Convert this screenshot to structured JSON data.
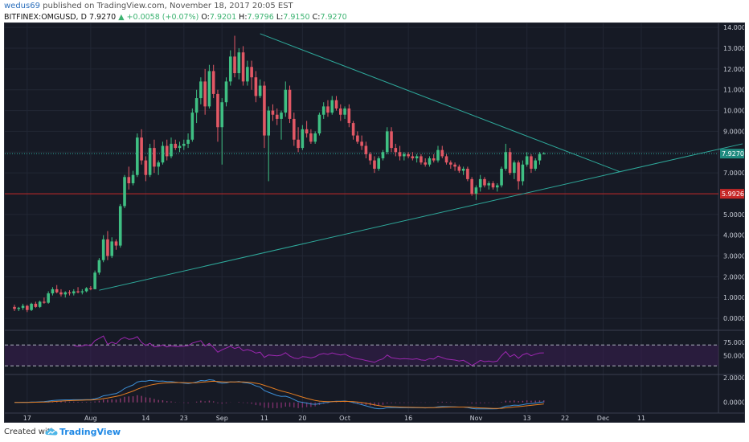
{
  "header": {
    "username": "wedus69",
    "published_text": "published on TradingView.com, November 18, 2017 20:05 EST",
    "symbol": "BITFINEX:OMGUSD, D",
    "last": "7.9270",
    "change": "+0.0058 (+0.07%)",
    "o_label": "O:",
    "o_value": "7.9201",
    "h_label": "H:",
    "h_value": "7.9796",
    "l_label": "L:",
    "l_value": "7.9150",
    "c_label": "C:",
    "c_value": "7.9270"
  },
  "footer": {
    "created_with": "Created with",
    "brand": "TradingView",
    "logo_icon": "tradingview-cloud-icon"
  },
  "colors": {
    "bg": "#161a25",
    "up": "#3fbf83",
    "down": "#e25865",
    "trend": "#2ea89a",
    "support": "#c62828",
    "rsi": "#9c27b0",
    "grid": "#222735"
  },
  "chart_data": {
    "type": "candlestick",
    "price_axis": {
      "ticks": [
        "14.0000",
        "13.0000",
        "12.0000",
        "11.0000",
        "10.0000",
        "9.0000",
        "8.0000",
        "7.0000",
        "6.0000",
        "5.0000",
        "4.0000",
        "3.0000",
        "2.0000",
        "1.0000",
        "0.0000"
      ],
      "ylim": [
        -0.5,
        14.2
      ],
      "last_price_label": "7.9270",
      "support_label": "5.9926",
      "support_level": 5.9926
    },
    "rsi_axis": {
      "ticks": [
        "75.0000",
        "50.0000"
      ],
      "ylim": [
        15,
        95
      ],
      "bands": [
        70,
        30
      ]
    },
    "macd_axis": {
      "ticks": [
        "2.0000",
        "0.0000"
      ],
      "ylim": [
        -0.8,
        2.2
      ]
    },
    "x_ticks": [
      {
        "label": "17",
        "i": 3
      },
      {
        "label": "Aug",
        "i": 18
      },
      {
        "label": "14",
        "i": 31
      },
      {
        "label": "23",
        "i": 40
      },
      {
        "label": "Sep",
        "i": 49
      },
      {
        "label": "11",
        "i": 59
      },
      {
        "label": "20",
        "i": 68
      },
      {
        "label": "Oct",
        "i": 78
      },
      {
        "label": "16",
        "i": 93
      },
      {
        "label": "Nov",
        "i": 109
      },
      {
        "label": "13",
        "i": 121
      },
      {
        "label": "22",
        "i": 130
      },
      {
        "label": "Dec",
        "i": 139
      },
      {
        "label": "11",
        "i": 148
      }
    ],
    "candles": [
      [
        0.55,
        0.65,
        0.35,
        0.45
      ],
      [
        0.45,
        0.55,
        0.35,
        0.5
      ],
      [
        0.5,
        0.7,
        0.4,
        0.6
      ],
      [
        0.6,
        0.65,
        0.3,
        0.4
      ],
      [
        0.4,
        0.75,
        0.35,
        0.7
      ],
      [
        0.7,
        0.8,
        0.5,
        0.55
      ],
      [
        0.55,
        0.85,
        0.5,
        0.8
      ],
      [
        0.8,
        1.0,
        0.7,
        0.75
      ],
      [
        0.75,
        1.3,
        0.7,
        1.2
      ],
      [
        1.2,
        1.5,
        1.1,
        1.4
      ],
      [
        1.4,
        1.6,
        1.2,
        1.25
      ],
      [
        1.25,
        1.4,
        1.05,
        1.15
      ],
      [
        1.15,
        1.3,
        1.0,
        1.25
      ],
      [
        1.25,
        1.35,
        1.1,
        1.2
      ],
      [
        1.2,
        1.4,
        1.1,
        1.3
      ],
      [
        1.3,
        1.5,
        1.2,
        1.25
      ],
      [
        1.25,
        1.4,
        1.15,
        1.3
      ],
      [
        1.3,
        1.5,
        1.25,
        1.45
      ],
      [
        1.45,
        1.55,
        1.35,
        1.4
      ],
      [
        1.4,
        2.3,
        1.4,
        2.2
      ],
      [
        2.2,
        2.9,
        2.1,
        2.8
      ],
      [
        2.8,
        4.0,
        2.7,
        3.8
      ],
      [
        3.8,
        4.2,
        2.8,
        3.0
      ],
      [
        3.0,
        3.9,
        2.9,
        3.7
      ],
      [
        3.7,
        3.8,
        3.3,
        3.5
      ],
      [
        3.5,
        5.5,
        3.4,
        5.4
      ],
      [
        5.4,
        6.9,
        5.3,
        6.8
      ],
      [
        6.8,
        7.3,
        6.2,
        6.5
      ],
      [
        6.5,
        7.1,
        6.4,
        6.9
      ],
      [
        6.9,
        8.9,
        6.8,
        8.7
      ],
      [
        8.7,
        9.1,
        7.4,
        7.6
      ],
      [
        7.6,
        7.8,
        6.6,
        6.9
      ],
      [
        6.9,
        8.4,
        6.8,
        8.2
      ],
      [
        8.2,
        8.6,
        7.0,
        7.3
      ],
      [
        7.3,
        7.6,
        6.9,
        7.5
      ],
      [
        7.5,
        8.5,
        7.4,
        8.3
      ],
      [
        8.3,
        8.6,
        7.6,
        7.8
      ],
      [
        7.8,
        8.7,
        7.7,
        8.4
      ],
      [
        8.4,
        8.6,
        8.1,
        8.2
      ],
      [
        8.2,
        8.5,
        8.0,
        8.3
      ],
      [
        8.3,
        8.6,
        8.1,
        8.4
      ],
      [
        8.4,
        8.9,
        8.2,
        8.6
      ],
      [
        8.6,
        10.1,
        8.5,
        9.9
      ],
      [
        9.9,
        11.0,
        9.4,
        10.6
      ],
      [
        10.6,
        11.6,
        10.3,
        11.4
      ],
      [
        11.4,
        12.0,
        9.8,
        10.2
      ],
      [
        10.2,
        12.2,
        10.1,
        11.9
      ],
      [
        11.9,
        12.2,
        10.6,
        10.8
      ],
      [
        10.8,
        11.0,
        8.5,
        9.2
      ],
      [
        9.2,
        10.6,
        7.4,
        10.4
      ],
      [
        10.4,
        11.6,
        10.2,
        11.4
      ],
      [
        11.4,
        12.9,
        11.2,
        12.6
      ],
      [
        12.6,
        13.6,
        11.6,
        11.8
      ],
      [
        11.8,
        13.0,
        11.5,
        12.8
      ],
      [
        12.8,
        13.1,
        11.2,
        11.4
      ],
      [
        11.4,
        12.4,
        11.2,
        12.1
      ],
      [
        12.1,
        12.4,
        11.0,
        11.6
      ],
      [
        11.6,
        11.9,
        10.4,
        10.7
      ],
      [
        10.7,
        11.5,
        10.6,
        11.2
      ],
      [
        11.2,
        11.4,
        8.2,
        8.8
      ],
      [
        8.8,
        10.2,
        6.6,
        10.0
      ],
      [
        10.0,
        10.3,
        9.5,
        9.8
      ],
      [
        9.8,
        10.1,
        9.3,
        9.6
      ],
      [
        9.6,
        10.0,
        8.6,
        9.9
      ],
      [
        9.9,
        11.4,
        9.7,
        11.0
      ],
      [
        11.0,
        11.2,
        9.4,
        9.6
      ],
      [
        9.6,
        9.9,
        8.3,
        8.6
      ],
      [
        8.6,
        9.2,
        8.0,
        8.2
      ],
      [
        8.2,
        9.3,
        8.1,
        9.1
      ],
      [
        9.1,
        9.5,
        8.7,
        8.9
      ],
      [
        8.9,
        9.1,
        8.4,
        8.5
      ],
      [
        8.5,
        9.0,
        8.4,
        8.9
      ],
      [
        8.9,
        9.9,
        8.8,
        9.8
      ],
      [
        9.8,
        10.4,
        9.6,
        10.2
      ],
      [
        10.2,
        10.5,
        9.7,
        9.9
      ],
      [
        9.9,
        10.7,
        9.8,
        10.5
      ],
      [
        10.5,
        10.7,
        10.0,
        10.1
      ],
      [
        10.1,
        10.3,
        9.5,
        9.8
      ],
      [
        9.8,
        10.2,
        9.6,
        10.1
      ],
      [
        10.1,
        10.3,
        9.2,
        9.4
      ],
      [
        9.4,
        9.5,
        8.6,
        8.8
      ],
      [
        8.8,
        9.0,
        8.4,
        8.5
      ],
      [
        8.5,
        8.8,
        8.1,
        8.3
      ],
      [
        8.3,
        8.5,
        7.7,
        7.9
      ],
      [
        7.9,
        8.0,
        7.4,
        7.6
      ],
      [
        7.6,
        7.8,
        7.0,
        7.2
      ],
      [
        7.2,
        7.8,
        7.1,
        7.7
      ],
      [
        7.7,
        8.1,
        7.6,
        8.0
      ],
      [
        8.0,
        9.2,
        7.9,
        9.0
      ],
      [
        9.0,
        9.2,
        8.0,
        8.2
      ],
      [
        8.2,
        8.4,
        7.8,
        8.0
      ],
      [
        8.0,
        8.3,
        7.6,
        7.8
      ],
      [
        7.8,
        8.0,
        7.6,
        7.9
      ],
      [
        7.9,
        8.0,
        7.7,
        7.8
      ],
      [
        7.8,
        8.0,
        7.6,
        7.7
      ],
      [
        7.7,
        7.9,
        7.5,
        7.8
      ],
      [
        7.8,
        7.9,
        7.4,
        7.5
      ],
      [
        7.5,
        7.7,
        7.3,
        7.4
      ],
      [
        7.4,
        7.8,
        7.3,
        7.7
      ],
      [
        7.7,
        7.9,
        7.5,
        7.6
      ],
      [
        7.6,
        8.3,
        7.5,
        8.1
      ],
      [
        8.1,
        8.3,
        7.7,
        7.8
      ],
      [
        7.8,
        7.9,
        7.4,
        7.5
      ],
      [
        7.5,
        7.6,
        7.2,
        7.4
      ],
      [
        7.4,
        7.5,
        7.1,
        7.3
      ],
      [
        7.3,
        7.4,
        7.0,
        7.1
      ],
      [
        7.1,
        7.3,
        6.9,
        7.2
      ],
      [
        7.2,
        7.3,
        6.6,
        6.7
      ],
      [
        6.7,
        6.8,
        5.9,
        6.0
      ],
      [
        6.0,
        6.4,
        5.7,
        6.3
      ],
      [
        6.3,
        6.9,
        6.1,
        6.7
      ],
      [
        6.7,
        6.8,
        6.3,
        6.4
      ],
      [
        6.4,
        6.6,
        6.2,
        6.5
      ],
      [
        6.5,
        6.6,
        6.2,
        6.3
      ],
      [
        6.3,
        6.5,
        6.1,
        6.4
      ],
      [
        6.4,
        7.3,
        6.3,
        7.2
      ],
      [
        7.2,
        8.4,
        7.1,
        8.0
      ],
      [
        8.0,
        8.2,
        6.9,
        7.0
      ],
      [
        7.0,
        7.6,
        6.7,
        7.5
      ],
      [
        7.5,
        7.6,
        6.2,
        6.6
      ],
      [
        6.6,
        7.6,
        6.4,
        7.4
      ],
      [
        7.4,
        8.0,
        7.3,
        7.8
      ],
      [
        7.8,
        7.9,
        7.0,
        7.2
      ],
      [
        7.2,
        7.7,
        7.1,
        7.6
      ],
      [
        7.6,
        8.0,
        7.4,
        7.9
      ],
      [
        7.9,
        8.0,
        7.9,
        7.93
      ]
    ]
  }
}
